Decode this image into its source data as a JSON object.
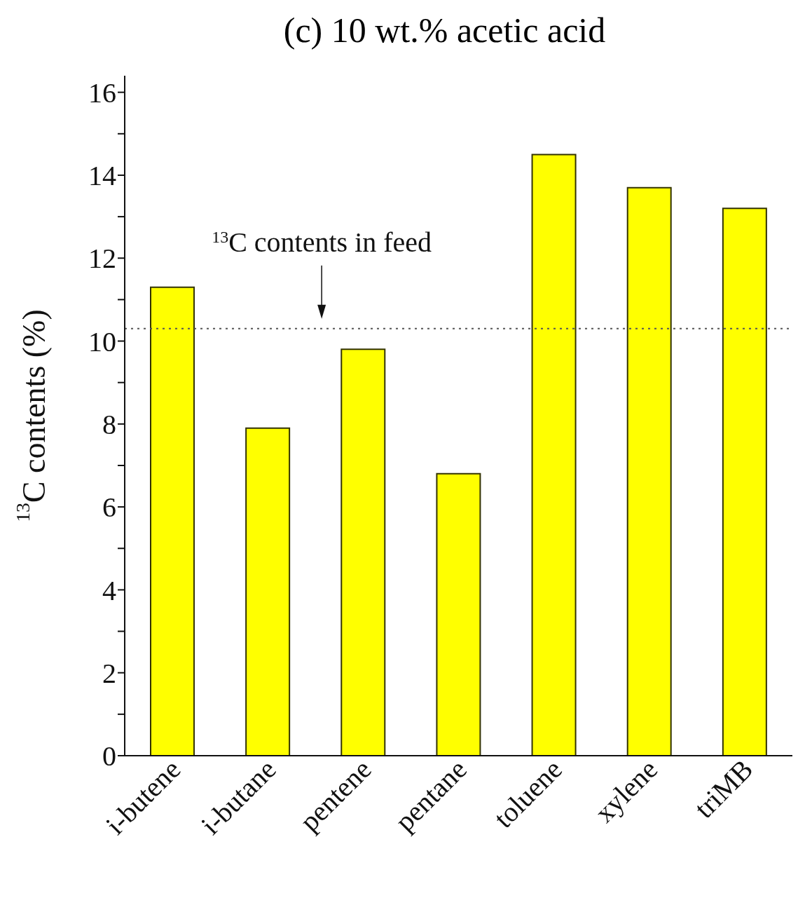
{
  "chart_data": {
    "type": "bar",
    "title": "(c) 10 wt.% acetic acid",
    "ylabel": "$^{13}$C contents (%)",
    "categories": [
      "i-butene",
      "i-butane",
      "pentene",
      "pentane",
      "toluene",
      "xylene",
      "triMB"
    ],
    "values": [
      11.3,
      7.9,
      9.8,
      6.8,
      14.5,
      13.7,
      13.2
    ],
    "color": "#ffff00",
    "ylim": [
      0,
      16.4
    ],
    "yticks": [
      0,
      {
        "value": 1,
        "label": null
      },
      2,
      {
        "value": 3,
        "label": null
      },
      4,
      {
        "value": 5,
        "label": null
      },
      6,
      {
        "value": 7,
        "label": null
      },
      8,
      {
        "value": 9,
        "label": null
      },
      10,
      {
        "value": 11,
        "label": null
      },
      12,
      {
        "value": 13,
        "label": null
      },
      14,
      {
        "value": 15,
        "label": null
      },
      16
    ],
    "ref_lines": [
      {
        "axis": "y",
        "value": 10.3,
        "label": "$^{13}$C contents in feed",
        "line_style": "dotted",
        "color": "#555555"
      }
    ],
    "grid": false,
    "legend": false
  }
}
